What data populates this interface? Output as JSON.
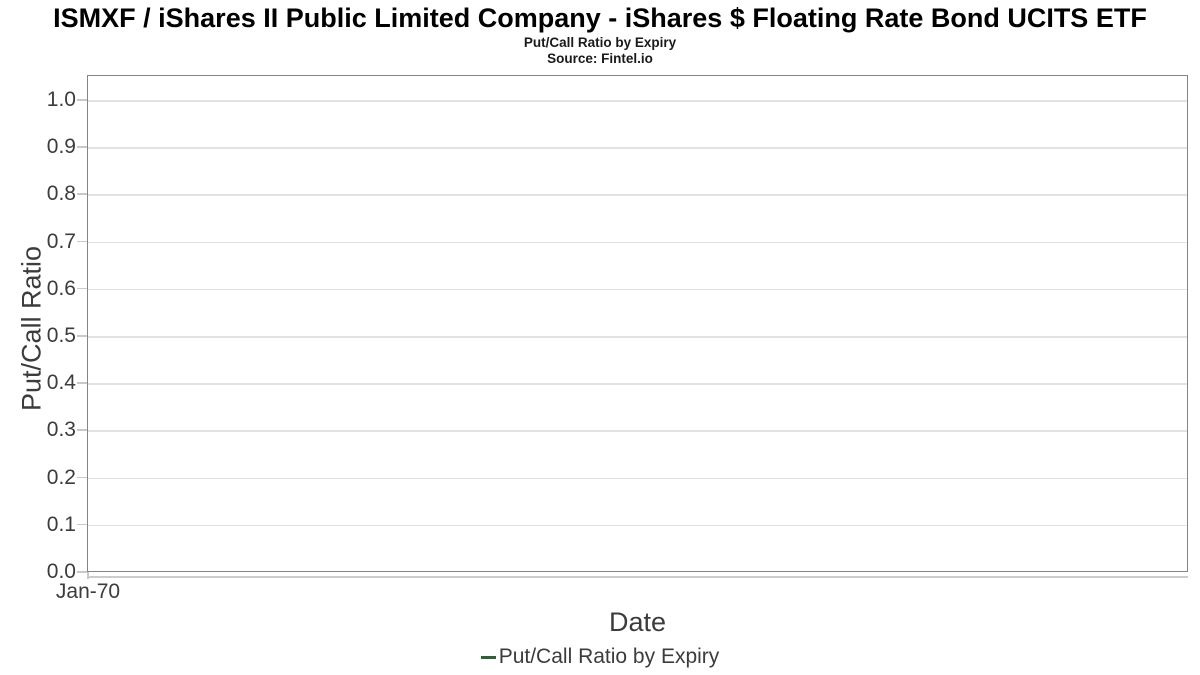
{
  "chart_data": {
    "type": "line",
    "title": "ISMXF / iShares II Public Limited Company - iShares $ Floating Rate Bond UCITS ETF",
    "subtitle": "Put/Call Ratio by Expiry",
    "source": "Source: Fintel.io",
    "xlabel": "Date",
    "ylabel": "Put/Call Ratio",
    "x_tick_labels": [
      "Jan-70"
    ],
    "y_tick_labels": [
      "0.0",
      "0.1",
      "0.2",
      "0.3",
      "0.4",
      "0.5",
      "0.6",
      "0.7",
      "0.8",
      "0.9",
      "1.0"
    ],
    "ylim": [
      0.0,
      1.05
    ],
    "grid": "horizontal",
    "legend_position": "bottom-center",
    "series": [
      {
        "name": "Put/Call Ratio by Expiry",
        "color": "#2d6233",
        "x": [],
        "values": []
      }
    ]
  }
}
